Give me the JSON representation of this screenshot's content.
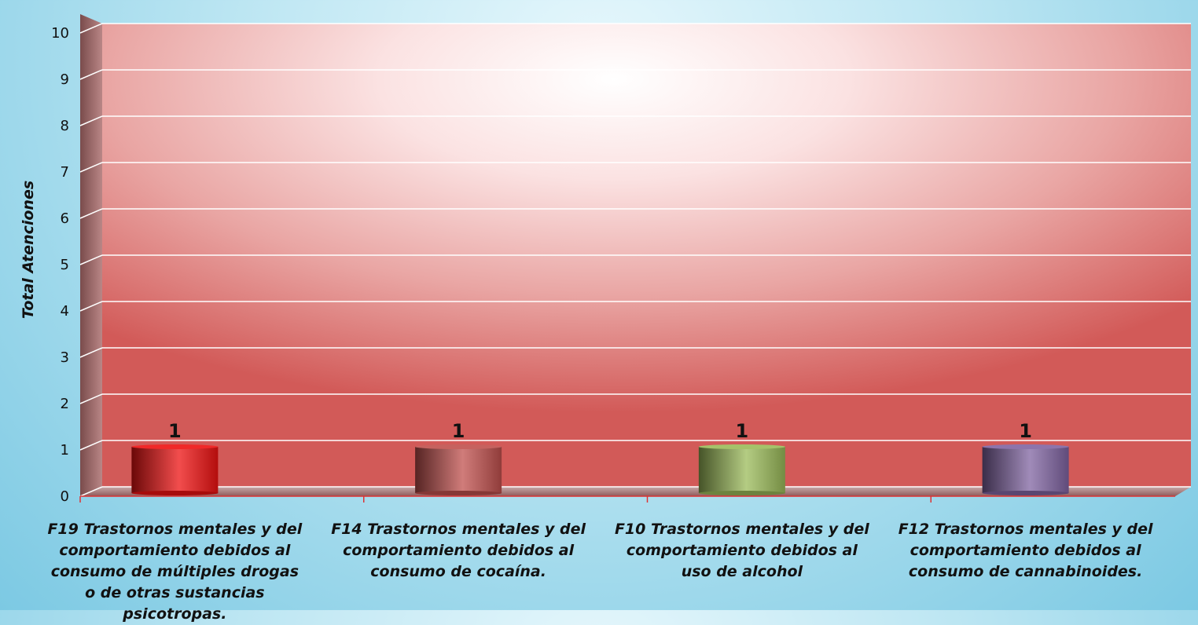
{
  "chart_data": {
    "type": "bar",
    "title": "",
    "xlabel": "",
    "ylabel": "Total Atenciones",
    "ylim": [
      0,
      10
    ],
    "yticks": [
      0,
      1,
      2,
      3,
      4,
      5,
      6,
      7,
      8,
      9,
      10
    ],
    "grid": true,
    "categories": [
      "F19 Trastornos mentales y del comportamiento debidos al consumo de múltiples drogas o de otras sustancias psicotropas.",
      "F14 Trastornos mentales y del comportamiento debidos al consumo de cocaína.",
      "F10 Trastornos mentales y del comportamiento debidos al uso de alcohol",
      "F12 Trastornos mentales y del comportamiento debidos al consumo de cannabinoides."
    ],
    "values": [
      1,
      1,
      1,
      1
    ],
    "data_labels": [
      "1",
      "1",
      "1",
      "1"
    ],
    "colors": [
      "#ee1111",
      "#c0504d",
      "#9bbb59",
      "#8064a2"
    ]
  }
}
